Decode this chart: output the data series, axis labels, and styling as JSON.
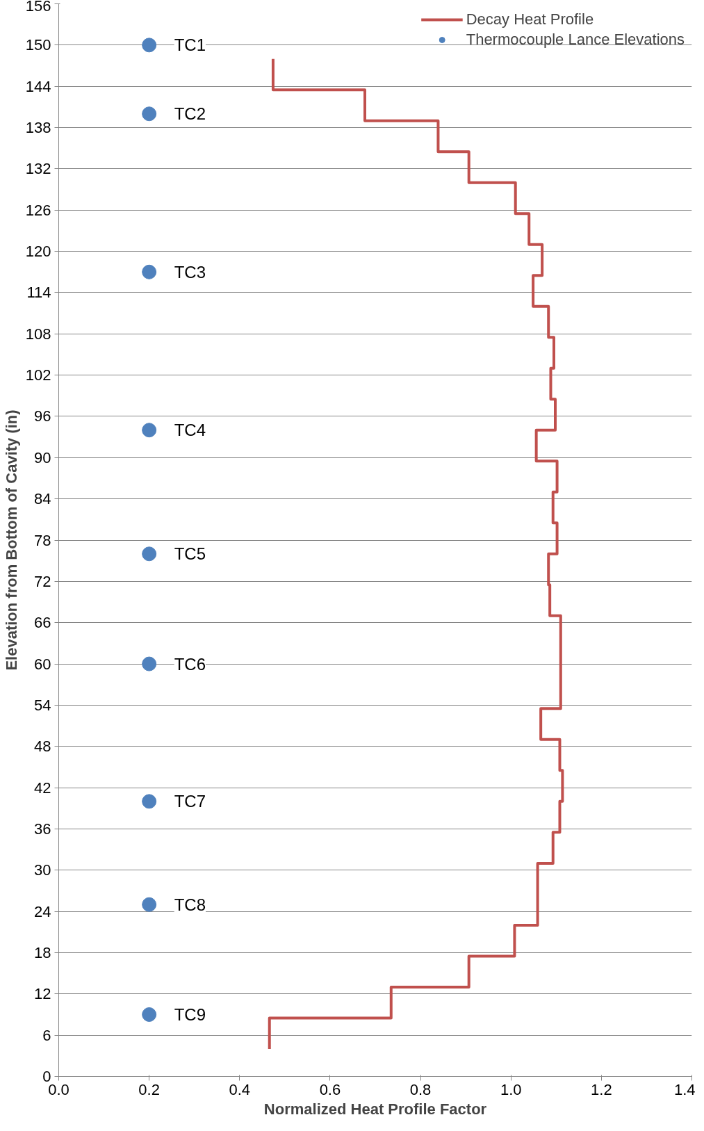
{
  "chart_data": {
    "type": "line",
    "xlabel": "Normalized Heat Profile Factor",
    "ylabel": "Elevation from Bottom of Cavity (in)",
    "xlim": [
      0,
      1.4
    ],
    "xticks": [
      {
        "value": 0,
        "label": "0.0"
      },
      {
        "value": 0.2,
        "label": "0.2"
      },
      {
        "value": 0.4,
        "label": "0.4"
      },
      {
        "value": 0.6,
        "label": "0.6"
      },
      {
        "value": 0.8,
        "label": "0.8"
      },
      {
        "value": 1,
        "label": "1.0"
      },
      {
        "value": 1.2,
        "label": "1.2"
      },
      {
        "value": 1.4,
        "label": "1.4"
      }
    ],
    "ylim": [
      0,
      156
    ],
    "yticks": [
      0,
      6,
      12,
      18,
      24,
      30,
      36,
      42,
      48,
      54,
      60,
      66,
      72,
      78,
      84,
      90,
      96,
      102,
      108,
      114,
      120,
      126,
      132,
      138,
      144,
      150,
      156
    ],
    "grid": "y",
    "legend": "top right",
    "series": [
      {
        "name": "Decay Heat Profile",
        "type": "line",
        "color": "#c0504d",
        "marker": "none",
        "line_style": "solid",
        "x": [
          0.466,
          0.466,
          0.735,
          0.735,
          0.907,
          0.907,
          1.008,
          1.008,
          1.059,
          1.059,
          1.093,
          1.093,
          1.108,
          1.108,
          1.114,
          1.114,
          1.108,
          1.108,
          1.066,
          1.066,
          1.11,
          1.11,
          1.086,
          1.086,
          1.083,
          1.083,
          1.102,
          1.102,
          1.093,
          1.093,
          1.102,
          1.102,
          1.056,
          1.056,
          1.098,
          1.098,
          1.088,
          1.088,
          1.095,
          1.095,
          1.083,
          1.083,
          1.049,
          1.049,
          1.069,
          1.069,
          1.04,
          1.04,
          1.01,
          1.01,
          0.907,
          0.907,
          0.839,
          0.839,
          0.677,
          0.677,
          0.474,
          0.474
        ],
        "values": [
          4,
          8.5,
          8.5,
          13,
          13,
          17.5,
          17.5,
          22,
          22,
          31,
          31,
          35.5,
          35.5,
          40,
          40,
          44.5,
          44.5,
          49,
          49,
          53.5,
          53.5,
          67,
          67,
          71.5,
          71.5,
          76,
          76,
          80.5,
          80.5,
          85,
          85,
          89.5,
          89.5,
          94,
          94,
          98.5,
          98.5,
          103,
          103,
          107.5,
          107.5,
          112,
          112,
          116.5,
          116.5,
          121,
          121,
          125.5,
          125.5,
          130,
          130,
          134.5,
          134.5,
          139,
          139,
          143.5,
          143.5,
          148
        ]
      },
      {
        "name": "Thermocouple Lance Elevations",
        "type": "scatter",
        "color": "#4f81bd",
        "marker": "circle",
        "x": [
          0.2,
          0.2,
          0.2,
          0.2,
          0.2,
          0.2,
          0.2,
          0.2,
          0.2
        ],
        "values": [
          150,
          140,
          117,
          94,
          76,
          60,
          40,
          25,
          9
        ],
        "value_labels": [
          "TC1",
          "TC2",
          "TC3",
          "TC4",
          "TC5",
          "TC6",
          "TC7",
          "TC8",
          "TC9"
        ]
      }
    ]
  }
}
